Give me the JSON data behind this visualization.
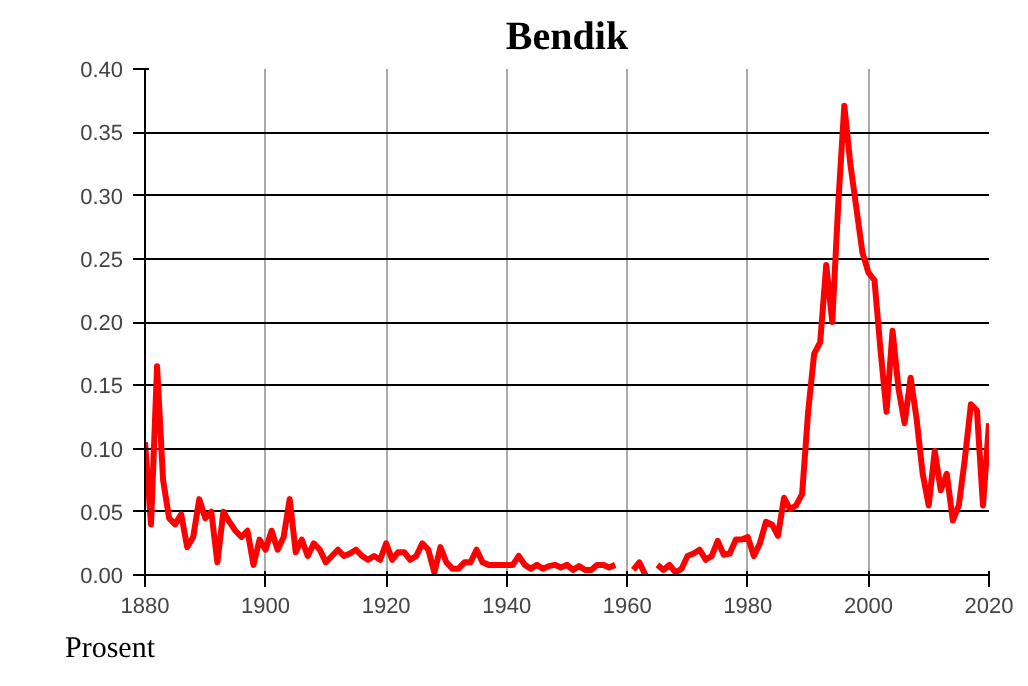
{
  "chart_data": {
    "type": "line",
    "title": "Bendik",
    "annotations": [
      "Prosent"
    ],
    "x": [
      1880,
      1881,
      1882,
      1883,
      1884,
      1885,
      1886,
      1887,
      1888,
      1889,
      1890,
      1891,
      1892,
      1893,
      1894,
      1895,
      1896,
      1897,
      1898,
      1899,
      1900,
      1901,
      1902,
      1903,
      1904,
      1905,
      1906,
      1907,
      1908,
      1909,
      1910,
      1911,
      1912,
      1913,
      1914,
      1915,
      1916,
      1917,
      1918,
      1919,
      1920,
      1921,
      1922,
      1923,
      1924,
      1925,
      1926,
      1927,
      1928,
      1929,
      1930,
      1931,
      1932,
      1933,
      1934,
      1935,
      1936,
      1937,
      1938,
      1939,
      1940,
      1941,
      1942,
      1943,
      1944,
      1945,
      1946,
      1947,
      1948,
      1949,
      1950,
      1951,
      1952,
      1953,
      1954,
      1955,
      1956,
      1957,
      1958,
      1959,
      1960,
      1961,
      1962,
      1963,
      1964,
      1965,
      1966,
      1967,
      1968,
      1969,
      1970,
      1971,
      1972,
      1973,
      1974,
      1975,
      1976,
      1977,
      1978,
      1979,
      1980,
      1981,
      1982,
      1983,
      1984,
      1985,
      1986,
      1987,
      1988,
      1989,
      1990,
      1991,
      1992,
      1993,
      1994,
      1995,
      1996,
      1997,
      1998,
      1999,
      2000,
      2001,
      2002,
      2003,
      2004,
      2005,
      2006,
      2007,
      2008,
      2009,
      2010,
      2011,
      2012,
      2013,
      2014,
      2015,
      2016,
      2017,
      2018,
      2019,
      2020
    ],
    "series": [
      {
        "color": "#ff0000",
        "values": [
          0.105,
          0.04,
          0.165,
          0.075,
          0.045,
          0.04,
          0.048,
          0.022,
          0.03,
          0.06,
          0.045,
          0.05,
          0.01,
          0.05,
          0.042,
          0.035,
          0.03,
          0.035,
          0.008,
          0.028,
          0.02,
          0.035,
          0.02,
          0.03,
          0.06,
          0.018,
          0.028,
          0.015,
          0.025,
          0.02,
          0.01,
          0.015,
          0.02,
          0.015,
          0.017,
          0.02,
          0.015,
          0.012,
          0.015,
          0.012,
          0.025,
          0.012,
          0.018,
          0.018,
          0.012,
          0.015,
          0.025,
          0.02,
          0.002,
          0.022,
          0.01,
          0.005,
          0.005,
          0.01,
          0.01,
          0.02,
          0.01,
          0.008,
          0.008,
          0.008,
          0.008,
          0.008,
          0.015,
          0.008,
          0.005,
          0.008,
          0.005,
          0.007,
          0.008,
          0.006,
          0.008,
          0.004,
          0.007,
          0.004,
          0.004,
          0.008,
          0.008,
          0.006,
          0.008,
          null,
          null,
          0.004,
          0.01,
          0.0,
          null,
          0.008,
          0.004,
          0.008,
          0.002,
          0.005,
          0.015,
          0.017,
          0.02,
          0.012,
          0.015,
          0.027,
          0.016,
          0.017,
          0.028,
          0.028,
          0.03,
          0.015,
          0.025,
          0.042,
          0.04,
          0.031,
          0.061,
          0.052,
          0.055,
          0.064,
          0.129,
          0.175,
          0.184,
          0.245,
          0.2,
          0.294,
          0.371,
          0.325,
          0.29,
          0.255,
          0.239,
          0.233,
          0.178,
          0.129,
          0.193,
          0.147,
          0.12,
          0.156,
          0.123,
          0.08,
          0.055,
          0.098,
          0.067,
          0.08,
          0.043,
          0.055,
          0.092,
          0.135,
          0.13,
          0.055,
          0.12
        ]
      }
    ],
    "xlim": [
      1880,
      2020
    ],
    "xticks": [
      1880,
      1900,
      1920,
      1940,
      1960,
      1980,
      2000,
      2020
    ],
    "ylim": [
      0,
      0.4
    ],
    "yticks": [
      {
        "value": 0,
        "label": "0.00"
      },
      {
        "value": 0.05,
        "label": "0.05"
      },
      {
        "value": 0.1,
        "label": "0.10"
      },
      {
        "value": 0.15,
        "label": "0.15"
      },
      {
        "value": 0.2,
        "label": "0.20"
      },
      {
        "value": 0.25,
        "label": "0.25"
      },
      {
        "value": 0.3,
        "label": "0.30"
      },
      {
        "value": 0.35,
        "label": "0.35"
      },
      {
        "value": 0.4,
        "label": "0.40"
      }
    ],
    "grid": true
  }
}
